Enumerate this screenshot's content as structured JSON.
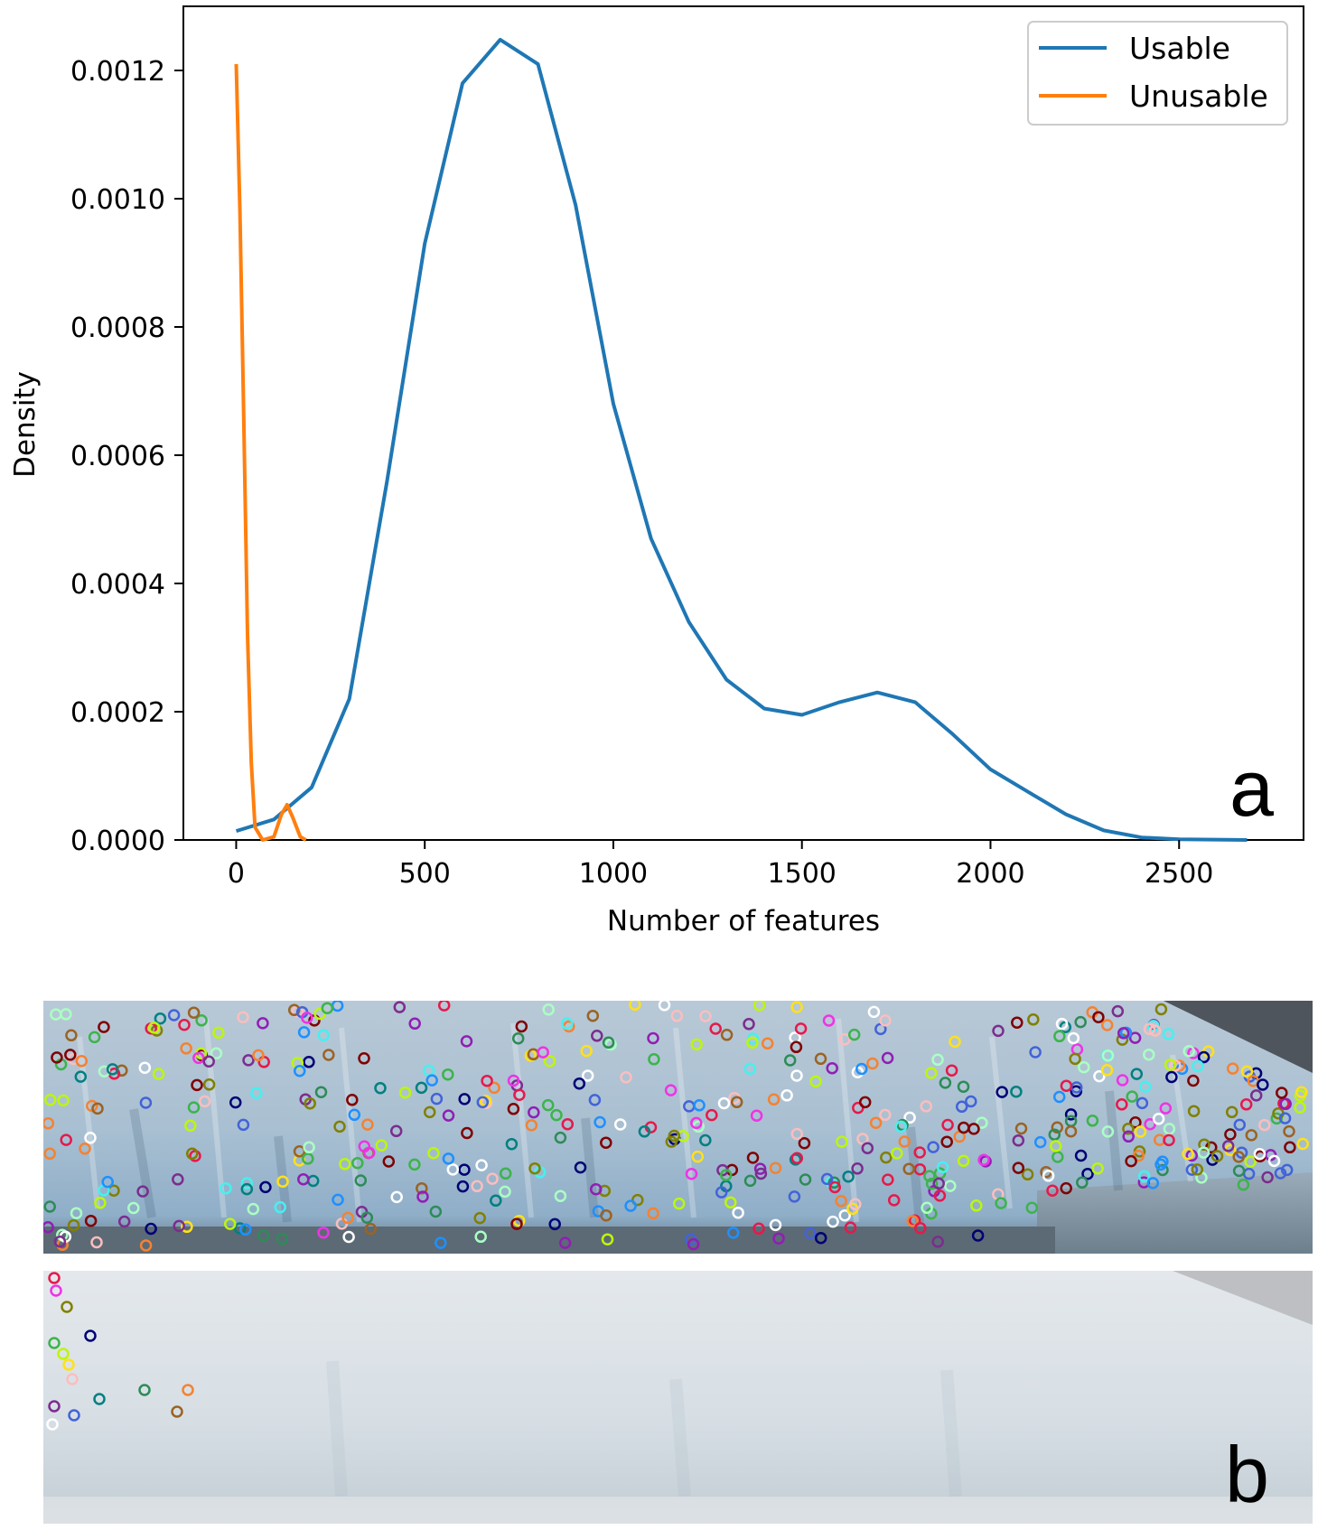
{
  "chart_data": {
    "type": "line",
    "xlabel": "Number of features",
    "ylabel": "Density",
    "xlim": [
      -140,
      2830
    ],
    "ylim": [
      0,
      0.0013
    ],
    "xticks": [
      0,
      500,
      1000,
      1500,
      2000,
      2500
    ],
    "yticks": [
      0.0,
      0.0002,
      0.0004,
      0.0006,
      0.0008,
      0.001,
      0.0012
    ],
    "ytick_labels": [
      "0.0000",
      "0.0002",
      "0.0004",
      "0.0006",
      "0.0008",
      "0.0010",
      "0.0012"
    ],
    "legend_position": "top-right",
    "grid": false,
    "series": [
      {
        "name": "Usable",
        "color": "#1f77b4",
        "points": [
          [
            0,
            1.4e-05
          ],
          [
            100,
            3.2e-05
          ],
          [
            200,
            8.2e-05
          ],
          [
            300,
            0.00022
          ],
          [
            400,
            0.00056
          ],
          [
            500,
            0.00093
          ],
          [
            600,
            0.00118
          ],
          [
            700,
            0.001248
          ],
          [
            800,
            0.00121
          ],
          [
            900,
            0.00099
          ],
          [
            1000,
            0.00068
          ],
          [
            1100,
            0.00047
          ],
          [
            1200,
            0.00034
          ],
          [
            1300,
            0.00025
          ],
          [
            1400,
            0.000205
          ],
          [
            1500,
            0.000195
          ],
          [
            1600,
            0.000215
          ],
          [
            1700,
            0.00023
          ],
          [
            1800,
            0.000215
          ],
          [
            1900,
            0.000165
          ],
          [
            2000,
            0.00011
          ],
          [
            2100,
            7.5e-05
          ],
          [
            2200,
            4e-05
          ],
          [
            2300,
            1.5e-05
          ],
          [
            2400,
            4e-06
          ],
          [
            2500,
            1e-06
          ],
          [
            2680,
            0.0
          ]
        ]
      },
      {
        "name": "Unusable",
        "color": "#ff7f0e",
        "points": [
          [
            0,
            0.00121
          ],
          [
            10,
            0.00098
          ],
          [
            20,
            0.00066
          ],
          [
            30,
            0.00032
          ],
          [
            40,
            0.00012
          ],
          [
            50,
            2e-05
          ],
          [
            70,
            0.0
          ],
          [
            100,
            5e-06
          ],
          [
            120,
            4e-05
          ],
          [
            135,
            5.5e-05
          ],
          [
            150,
            3.5e-05
          ],
          [
            170,
            5e-06
          ],
          [
            185,
            0.0
          ]
        ]
      }
    ],
    "panel_label": "a"
  },
  "panel_b": {
    "label": "b",
    "top_image": "glacier-photo-with-feature-markers",
    "bottom_image": "hazy-glacier-photo-with-few-feature-markers"
  }
}
